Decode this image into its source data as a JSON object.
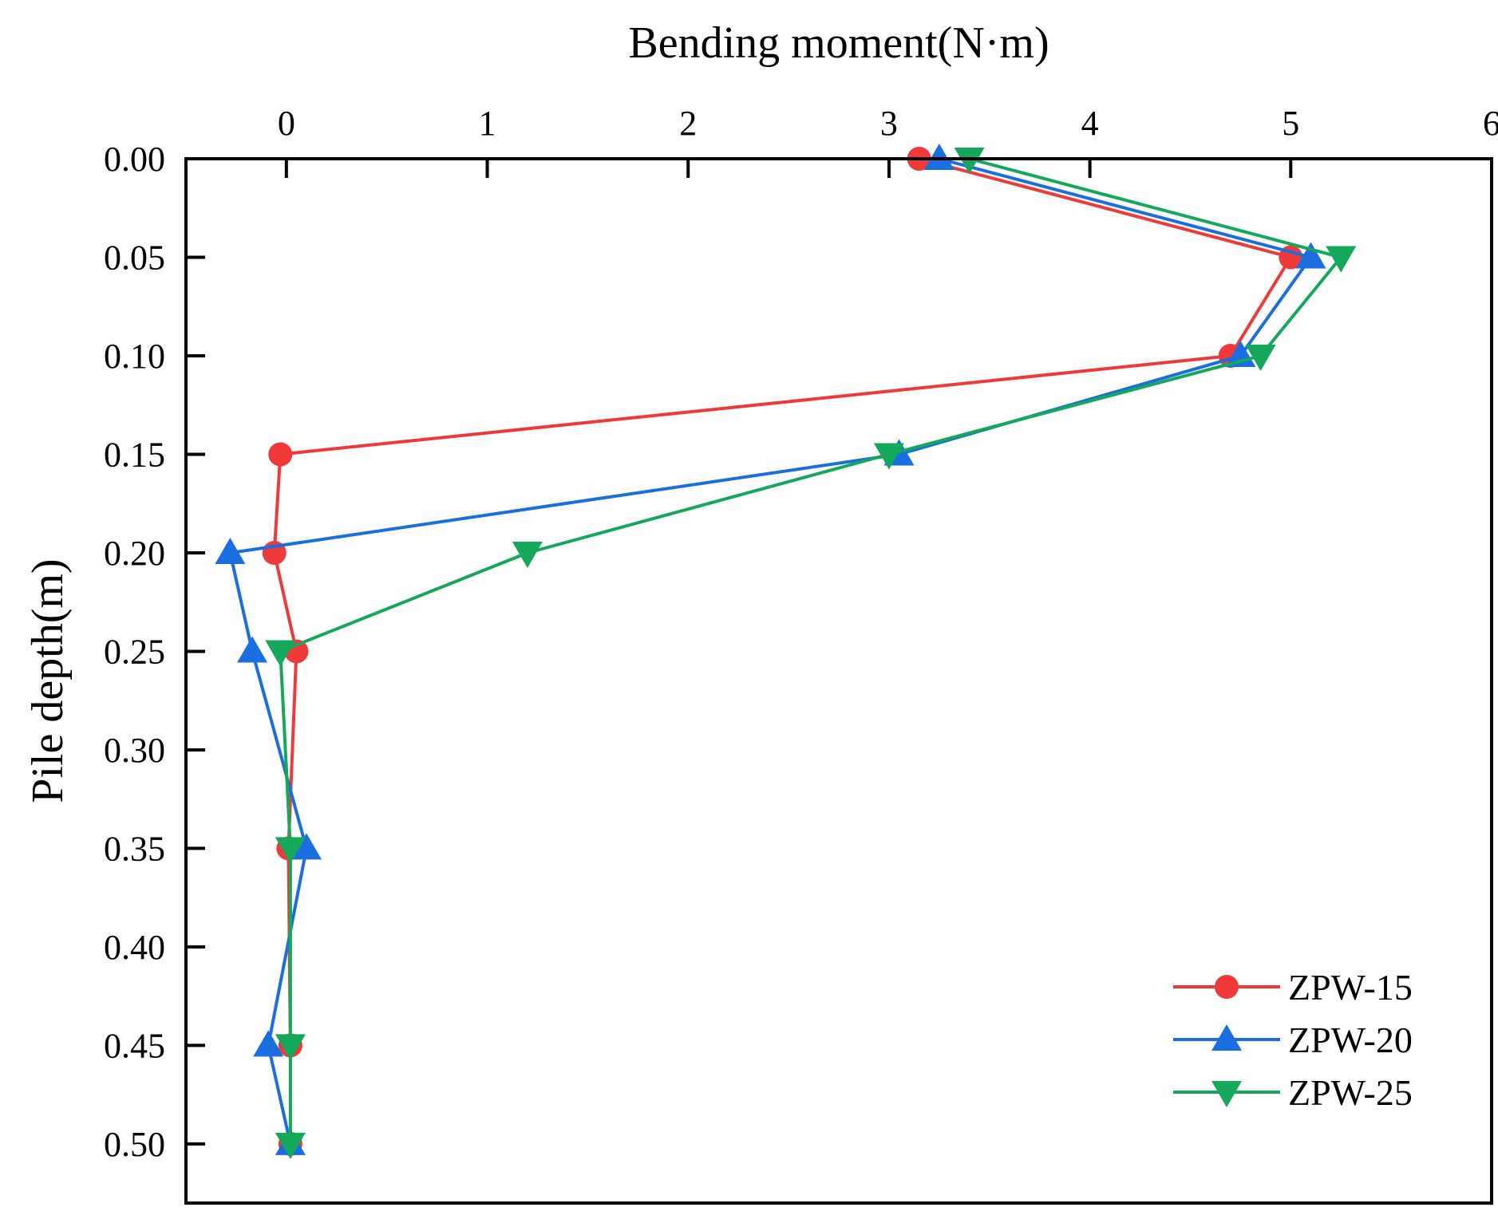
{
  "chart_data": {
    "type": "line",
    "orientation": "depth-vertical",
    "title": "",
    "xlabel": "Bending moment(N·m)",
    "ylabel": "Pile depth(m)",
    "x_axis_position": "top",
    "y_axis_inverted": true,
    "xlim": [
      -0.5,
      6
    ],
    "ylim": [
      0,
      0.53
    ],
    "xticks": [
      0,
      1,
      2,
      3,
      4,
      5,
      6
    ],
    "yticks": [
      0.0,
      0.05,
      0.1,
      0.15,
      0.2,
      0.25,
      0.3,
      0.35,
      0.4,
      0.45,
      0.5
    ],
    "xtick_labels": [
      "0",
      "1",
      "2",
      "3",
      "4",
      "5",
      "6"
    ],
    "ytick_labels": [
      "0.00",
      "0.05",
      "0.10",
      "0.15",
      "0.20",
      "0.25",
      "0.30",
      "0.35",
      "0.40",
      "0.45",
      "0.50"
    ],
    "grid": false,
    "legend_position": "bottom-right",
    "series": [
      {
        "name": "ZPW-15",
        "color": "#f03a3a",
        "marker": "circle",
        "points": [
          {
            "depth": 0.0,
            "moment": 3.15
          },
          {
            "depth": 0.05,
            "moment": 5.0
          },
          {
            "depth": 0.1,
            "moment": 4.7
          },
          {
            "depth": 0.15,
            "moment": -0.03
          },
          {
            "depth": 0.2,
            "moment": -0.06
          },
          {
            "depth": 0.25,
            "moment": 0.05
          },
          {
            "depth": 0.35,
            "moment": 0.01
          },
          {
            "depth": 0.45,
            "moment": 0.02
          },
          {
            "depth": 0.5,
            "moment": 0.02
          }
        ]
      },
      {
        "name": "ZPW-20",
        "color": "#1a6ee0",
        "marker": "triangle-up",
        "points": [
          {
            "depth": 0.0,
            "moment": 3.25
          },
          {
            "depth": 0.05,
            "moment": 5.1
          },
          {
            "depth": 0.1,
            "moment": 4.75
          },
          {
            "depth": 0.15,
            "moment": 3.05
          },
          {
            "depth": 0.2,
            "moment": -0.28
          },
          {
            "depth": 0.25,
            "moment": -0.17
          },
          {
            "depth": 0.35,
            "moment": 0.1
          },
          {
            "depth": 0.45,
            "moment": -0.09
          },
          {
            "depth": 0.5,
            "moment": 0.02
          }
        ]
      },
      {
        "name": "ZPW-25",
        "color": "#14a85a",
        "marker": "triangle-down",
        "points": [
          {
            "depth": 0.0,
            "moment": 3.4
          },
          {
            "depth": 0.05,
            "moment": 5.25
          },
          {
            "depth": 0.1,
            "moment": 4.85
          },
          {
            "depth": 0.15,
            "moment": 3.0
          },
          {
            "depth": 0.2,
            "moment": 1.2
          },
          {
            "depth": 0.25,
            "moment": -0.03
          },
          {
            "depth": 0.35,
            "moment": 0.02
          },
          {
            "depth": 0.45,
            "moment": 0.02
          },
          {
            "depth": 0.5,
            "moment": 0.02
          }
        ]
      }
    ]
  }
}
